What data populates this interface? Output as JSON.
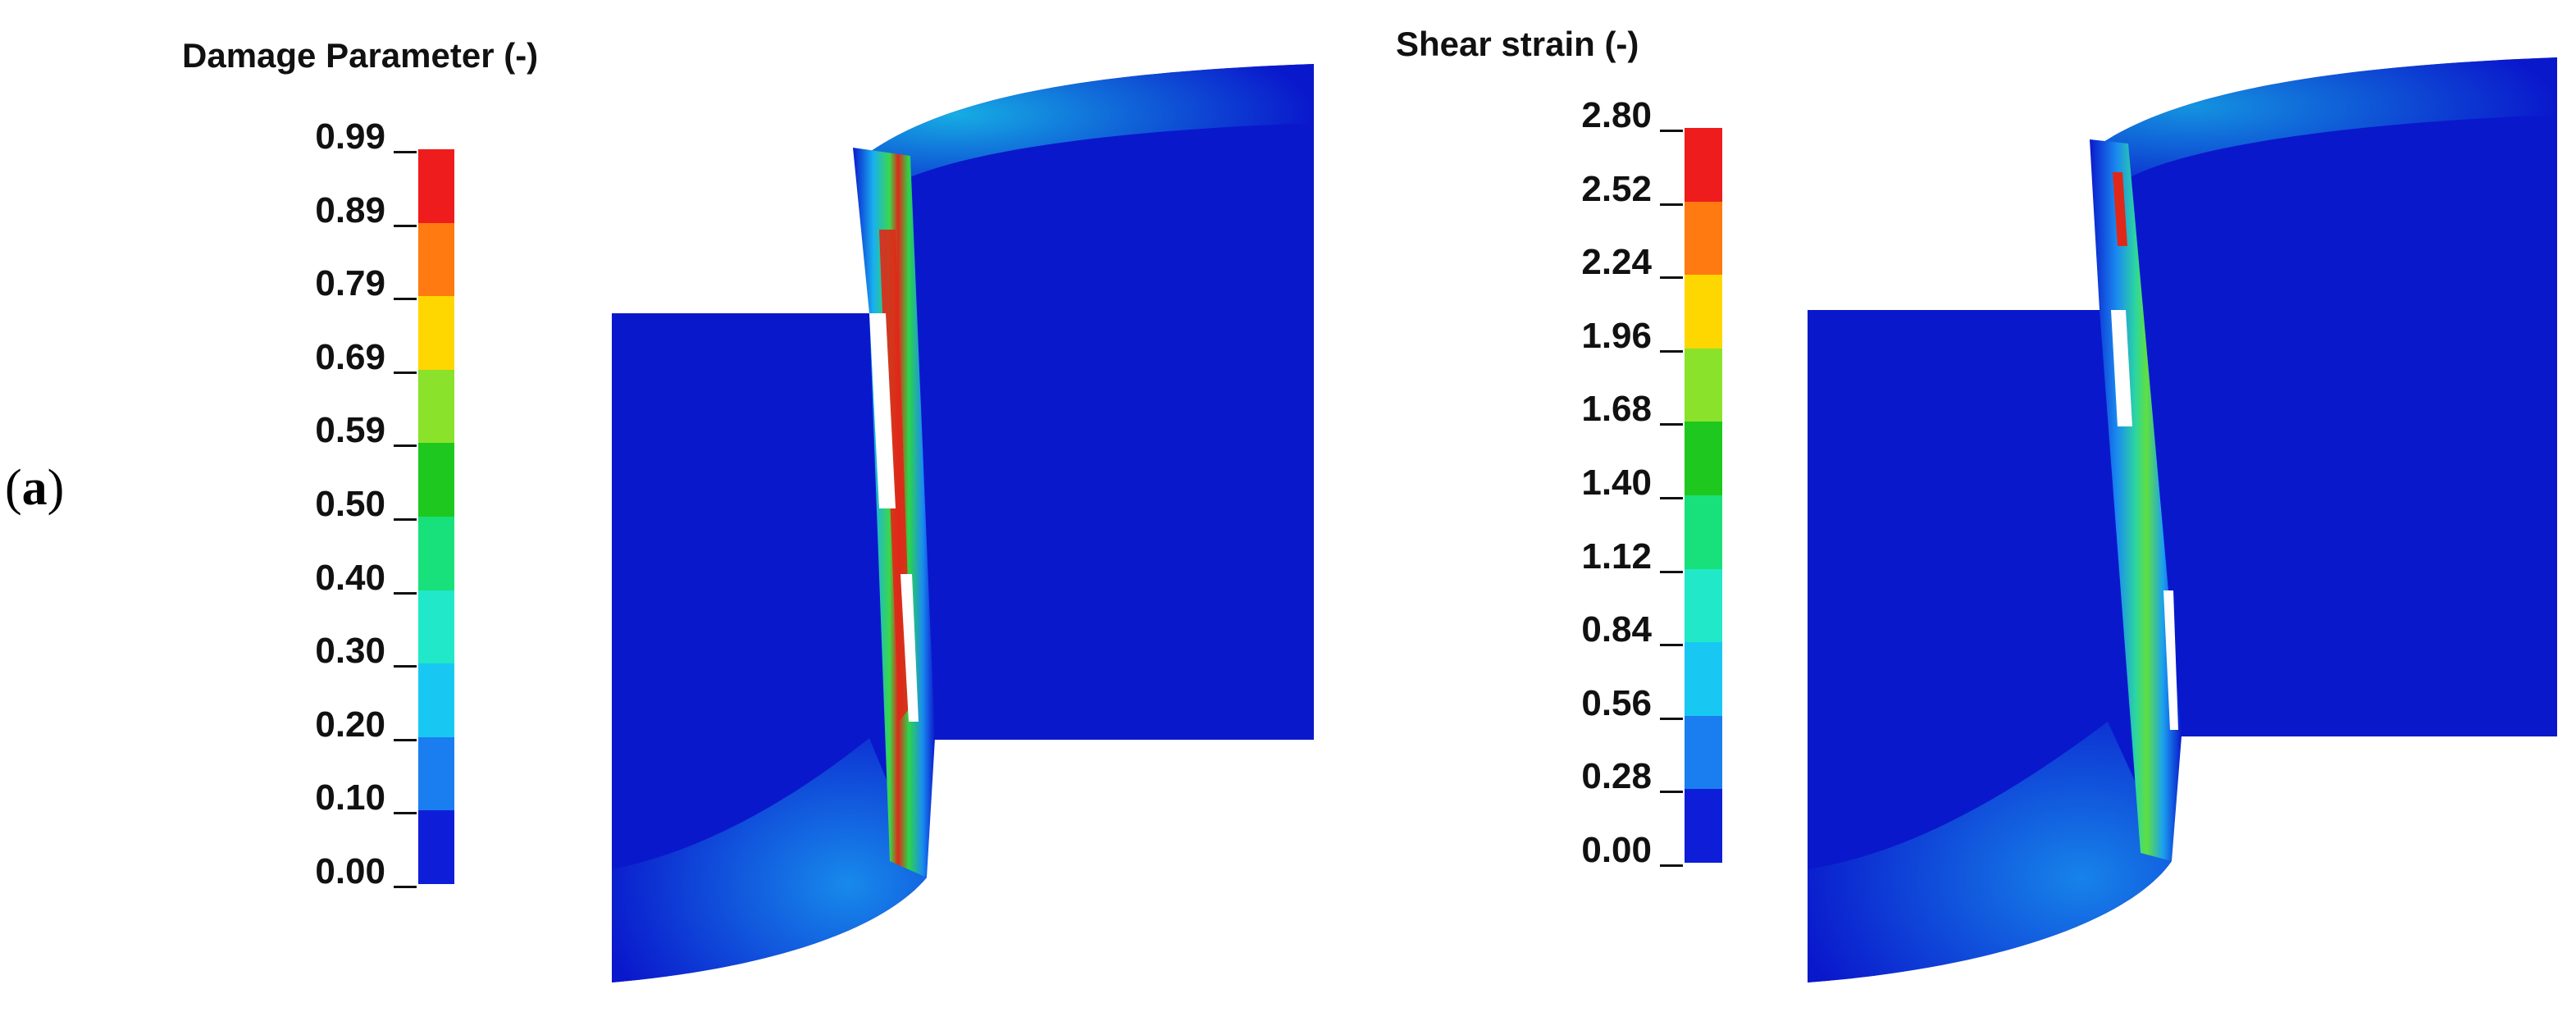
{
  "panel_label": {
    "open": "(",
    "letter": "a",
    "close": ")"
  },
  "legends": [
    {
      "title": "Damage Parameter (-)",
      "ticks": [
        "0.99",
        "0.89",
        "0.79",
        "0.69",
        "0.59",
        "0.50",
        "0.40",
        "0.30",
        "0.20",
        "0.10",
        "0.00"
      ]
    },
    {
      "title": "Shear strain (-)",
      "ticks": [
        "2.80",
        "2.52",
        "2.24",
        "1.96",
        "1.68",
        "1.40",
        "1.12",
        "0.84",
        "0.56",
        "0.28",
        "0.00"
      ]
    }
  ],
  "colormap": [
    "#ee1c1c",
    "#ff7a10",
    "#ffd700",
    "#8be22a",
    "#1ec81e",
    "#18e07a",
    "#20e8c8",
    "#19c8f2",
    "#1a7ef0",
    "#0e1ed8"
  ],
  "colors": {
    "body_blue": "#0a18cc",
    "band_red": "#e02818",
    "band_green": "#2cd648"
  }
}
